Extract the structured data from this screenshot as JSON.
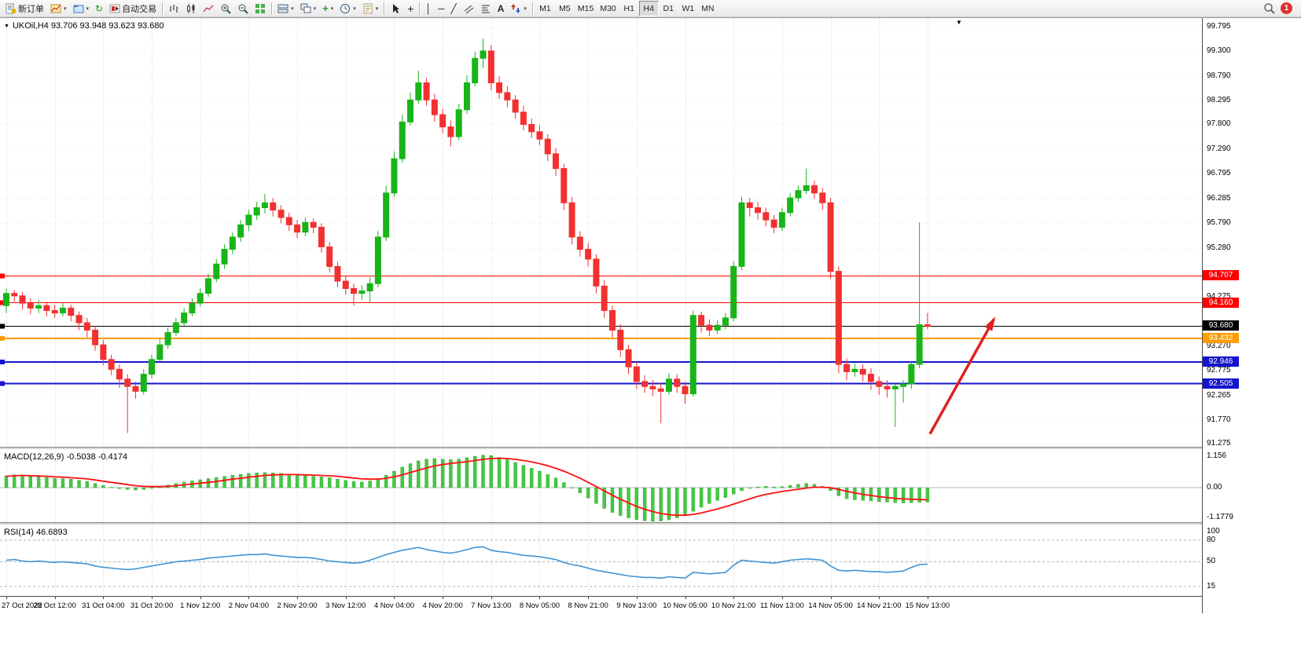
{
  "toolbar": {
    "new_order_label": "新订单",
    "autotrading_label": "自动交易",
    "timeframes": [
      {
        "label": "M1",
        "active": false
      },
      {
        "label": "M5",
        "active": false
      },
      {
        "label": "M15",
        "active": false
      },
      {
        "label": "M30",
        "active": false
      },
      {
        "label": "H1",
        "active": false
      },
      {
        "label": "H4",
        "active": true
      },
      {
        "label": "D1",
        "active": false
      },
      {
        "label": "W1",
        "active": false
      },
      {
        "label": "MN",
        "active": false
      }
    ],
    "notification_badge": "1"
  },
  "icons": {
    "dropdown": "▾",
    "refresh": "↻",
    "indicator_plus": "+",
    "crosshair": "+",
    "vline": "│",
    "hline": "─",
    "trendline": "╱",
    "text_tool": "A",
    "shift_marker": "▼",
    "header_collapse": "▼"
  },
  "chart_data": {
    "type": "candlestick",
    "header": "UKOil,H4 93.706 93.948 93.623 93.680",
    "ylim": [
      91.25,
      99.94
    ],
    "colors": {
      "bull": "#18b418",
      "bear": "#f23030",
      "macd_hist": "#44c944",
      "macd_signal": "#ff0f0f",
      "rsi": "#3e93d4",
      "grid_v": "#d6d6d6",
      "grid_h": "#ededed"
    },
    "price_axis_labels": [
      "99.795",
      "99.300",
      "98.790",
      "98.295",
      "97.800",
      "97.290",
      "96.795",
      "96.285",
      "95.790",
      "95.280",
      "94.275",
      "93.270",
      "92.775",
      "92.265",
      "91.770",
      "91.275"
    ],
    "extra_gridline_prices": [
      94.78,
      93.775
    ],
    "time_axis_labels": [
      "27 Oct 2022",
      "28 Oct 12:00",
      "31 Oct 04:00",
      "31 Oct 20:00",
      "1 Nov 12:00",
      "2 Nov 04:00",
      "2 Nov 20:00",
      "3 Nov 12:00",
      "4 Nov 04:00",
      "4 Nov 20:00",
      "7 Nov 13:00",
      "8 Nov 05:00",
      "8 Nov 21:00",
      "9 Nov 13:00",
      "10 Nov 05:00",
      "10 Nov 21:00",
      "11 Nov 13:00",
      "14 Nov 05:00",
      "14 Nov 21:00",
      "15 Nov 13:00"
    ],
    "hlines": [
      {
        "price": 94.707,
        "label": "94.707",
        "color": "#ff0000",
        "width": 1
      },
      {
        "price": 94.16,
        "label": "94.160",
        "color": "#ff0000",
        "width": 1
      },
      {
        "price": 93.68,
        "label": "93.680",
        "color": "#000000",
        "width": 1
      },
      {
        "price": 93.432,
        "label": "93.432",
        "color": "#ff9c00",
        "width": 2
      },
      {
        "price": 92.946,
        "label": "92.946",
        "color": "#1414cc",
        "width": 2
      },
      {
        "price": 92.505,
        "label": "92.505",
        "color": "#1414cc",
        "width": 2
      }
    ],
    "arrow": {
      "from": {
        "bar": 114.3,
        "price": 91.48
      },
      "to": {
        "bar": 122.2,
        "price": 93.82
      },
      "color": "#e02020"
    },
    "candles": [
      [
        94.1,
        94.45,
        93.95,
        94.35
      ],
      [
        94.35,
        94.42,
        94.18,
        94.3
      ],
      [
        94.3,
        94.38,
        94.02,
        94.15
      ],
      [
        94.15,
        94.25,
        93.92,
        94.05
      ],
      [
        94.05,
        94.22,
        93.95,
        94.1
      ],
      [
        94.1,
        94.18,
        93.88,
        94.0
      ],
      [
        94.0,
        94.12,
        93.85,
        93.95
      ],
      [
        93.95,
        94.15,
        93.88,
        94.05
      ],
      [
        94.05,
        94.12,
        93.78,
        93.9
      ],
      [
        93.9,
        93.98,
        93.6,
        93.75
      ],
      [
        93.75,
        93.85,
        93.45,
        93.6
      ],
      [
        93.6,
        93.68,
        93.18,
        93.3
      ],
      [
        93.3,
        93.4,
        92.88,
        93.0
      ],
      [
        93.0,
        93.1,
        92.68,
        92.8
      ],
      [
        92.8,
        92.9,
        92.42,
        92.6
      ],
      [
        92.6,
        92.7,
        91.5,
        92.45
      ],
      [
        92.45,
        92.55,
        92.2,
        92.35
      ],
      [
        92.35,
        92.8,
        92.28,
        92.7
      ],
      [
        92.7,
        93.1,
        92.62,
        93.0
      ],
      [
        93.0,
        93.42,
        92.95,
        93.3
      ],
      [
        93.3,
        93.65,
        93.22,
        93.55
      ],
      [
        93.55,
        93.85,
        93.48,
        93.75
      ],
      [
        93.75,
        94.05,
        93.68,
        93.95
      ],
      [
        93.95,
        94.25,
        93.88,
        94.15
      ],
      [
        94.15,
        94.45,
        94.08,
        94.35
      ],
      [
        94.35,
        94.75,
        94.28,
        94.65
      ],
      [
        94.65,
        95.05,
        94.58,
        94.95
      ],
      [
        94.95,
        95.35,
        94.85,
        95.25
      ],
      [
        95.25,
        95.6,
        95.15,
        95.5
      ],
      [
        95.5,
        95.85,
        95.4,
        95.75
      ],
      [
        95.75,
        96.05,
        95.62,
        95.95
      ],
      [
        95.95,
        96.22,
        95.85,
        96.1
      ],
      [
        96.1,
        96.38,
        95.98,
        96.2
      ],
      [
        96.2,
        96.3,
        95.92,
        96.05
      ],
      [
        96.05,
        96.15,
        95.78,
        95.9
      ],
      [
        95.9,
        96.0,
        95.62,
        95.75
      ],
      [
        95.75,
        95.85,
        95.48,
        95.6
      ],
      [
        95.6,
        95.9,
        95.52,
        95.8
      ],
      [
        95.8,
        95.88,
        95.58,
        95.7
      ],
      [
        95.7,
        95.78,
        95.18,
        95.3
      ],
      [
        95.3,
        95.4,
        94.78,
        94.9
      ],
      [
        94.9,
        95.0,
        94.48,
        94.6
      ],
      [
        94.6,
        94.7,
        94.32,
        94.45
      ],
      [
        94.45,
        94.55,
        94.1,
        94.35
      ],
      [
        94.35,
        94.52,
        94.22,
        94.4
      ],
      [
        94.4,
        94.68,
        94.15,
        94.55
      ],
      [
        94.55,
        95.62,
        94.48,
        95.5
      ],
      [
        95.5,
        96.55,
        95.42,
        96.4
      ],
      [
        96.4,
        97.25,
        96.32,
        97.1
      ],
      [
        97.1,
        98.0,
        97.02,
        97.85
      ],
      [
        97.85,
        98.45,
        97.78,
        98.3
      ],
      [
        98.3,
        98.9,
        98.22,
        98.65
      ],
      [
        98.65,
        98.75,
        98.18,
        98.3
      ],
      [
        98.3,
        98.42,
        97.85,
        98.0
      ],
      [
        98.0,
        98.12,
        97.62,
        97.75
      ],
      [
        97.75,
        97.88,
        97.35,
        97.55
      ],
      [
        97.55,
        98.22,
        97.48,
        98.1
      ],
      [
        98.1,
        98.8,
        98.02,
        98.65
      ],
      [
        98.65,
        99.28,
        98.58,
        99.15
      ],
      [
        99.15,
        99.55,
        98.95,
        99.3
      ],
      [
        99.3,
        99.42,
        98.5,
        98.65
      ],
      [
        98.65,
        98.78,
        98.32,
        98.45
      ],
      [
        98.45,
        98.58,
        98.15,
        98.3
      ],
      [
        98.3,
        98.4,
        97.92,
        98.05
      ],
      [
        98.05,
        98.18,
        97.68,
        97.8
      ],
      [
        97.8,
        97.92,
        97.52,
        97.65
      ],
      [
        97.65,
        97.78,
        97.38,
        97.5
      ],
      [
        97.5,
        97.6,
        97.05,
        97.2
      ],
      [
        97.2,
        97.32,
        96.75,
        96.9
      ],
      [
        96.9,
        97.0,
        96.05,
        96.2
      ],
      [
        96.2,
        96.32,
        95.35,
        95.5
      ],
      [
        95.5,
        95.62,
        95.1,
        95.25
      ],
      [
        95.25,
        95.38,
        94.9,
        95.05
      ],
      [
        95.05,
        95.15,
        94.35,
        94.5
      ],
      [
        94.5,
        94.62,
        93.85,
        94.0
      ],
      [
        94.0,
        94.1,
        93.45,
        93.6
      ],
      [
        93.6,
        93.72,
        93.05,
        93.2
      ],
      [
        93.2,
        93.3,
        92.7,
        92.85
      ],
      [
        92.85,
        92.95,
        92.4,
        92.55
      ],
      [
        92.55,
        92.68,
        92.32,
        92.45
      ],
      [
        92.45,
        92.58,
        92.25,
        92.4
      ],
      [
        92.4,
        92.52,
        91.7,
        92.35
      ],
      [
        92.35,
        92.72,
        92.28,
        92.6
      ],
      [
        92.6,
        92.7,
        92.32,
        92.45
      ],
      [
        92.45,
        92.55,
        92.1,
        92.3
      ],
      [
        92.3,
        94.0,
        92.25,
        93.9
      ],
      [
        93.9,
        93.98,
        93.55,
        93.7
      ],
      [
        93.7,
        93.82,
        93.48,
        93.6
      ],
      [
        93.6,
        93.8,
        93.52,
        93.7
      ],
      [
        93.7,
        93.95,
        93.62,
        93.85
      ],
      [
        93.85,
        95.0,
        93.78,
        94.9
      ],
      [
        94.9,
        96.32,
        94.82,
        96.2
      ],
      [
        96.2,
        96.3,
        95.92,
        96.1
      ],
      [
        96.1,
        96.22,
        95.85,
        96.0
      ],
      [
        96.0,
        96.1,
        95.72,
        95.85
      ],
      [
        95.85,
        95.95,
        95.58,
        95.7
      ],
      [
        95.7,
        96.1,
        95.62,
        96.0
      ],
      [
        96.0,
        96.4,
        95.92,
        96.3
      ],
      [
        96.3,
        96.55,
        96.22,
        96.45
      ],
      [
        96.45,
        96.9,
        96.38,
        96.55
      ],
      [
        96.55,
        96.65,
        96.28,
        96.4
      ],
      [
        96.4,
        96.5,
        96.05,
        96.2
      ],
      [
        96.2,
        96.3,
        94.65,
        94.8
      ],
      [
        94.8,
        94.9,
        92.72,
        92.9
      ],
      [
        92.9,
        93.02,
        92.58,
        92.75
      ],
      [
        92.75,
        92.92,
        92.65,
        92.8
      ],
      [
        92.8,
        92.9,
        92.55,
        92.7
      ],
      [
        92.7,
        92.82,
        92.38,
        92.55
      ],
      [
        92.55,
        92.65,
        92.28,
        92.45
      ],
      [
        92.45,
        92.58,
        92.22,
        92.4
      ],
      [
        92.4,
        92.5,
        91.62,
        92.45
      ],
      [
        92.45,
        92.58,
        92.12,
        92.5
      ],
      [
        92.5,
        92.95,
        92.4,
        92.9
      ],
      [
        92.9,
        95.8,
        92.82,
        93.71
      ],
      [
        93.71,
        93.95,
        93.62,
        93.68
      ]
    ],
    "macd": {
      "label": "MACD(12,26,9) -0.5038 -0.4174",
      "ylim": [
        -1.2,
        1.32
      ],
      "scale": [
        {
          "label": "1.156",
          "value": 1.156
        },
        {
          "label": "0.00",
          "value": 0
        },
        {
          "label": "-1.1779",
          "value": -1.1779
        }
      ],
      "histogram": [
        0.42,
        0.45,
        0.43,
        0.4,
        0.38,
        0.36,
        0.33,
        0.32,
        0.3,
        0.26,
        0.22,
        0.15,
        0.08,
        0.02,
        -0.03,
        -0.06,
        -0.08,
        -0.06,
        -0.02,
        0.04,
        0.1,
        0.15,
        0.2,
        0.24,
        0.28,
        0.32,
        0.36,
        0.4,
        0.44,
        0.47,
        0.5,
        0.52,
        0.53,
        0.52,
        0.5,
        0.47,
        0.44,
        0.42,
        0.4,
        0.38,
        0.35,
        0.3,
        0.26,
        0.22,
        0.2,
        0.24,
        0.32,
        0.44,
        0.58,
        0.72,
        0.84,
        0.94,
        1.0,
        1.02,
        1.0,
        0.98,
        1.0,
        1.05,
        1.1,
        1.14,
        1.12,
        1.06,
        0.98,
        0.88,
        0.78,
        0.68,
        0.58,
        0.46,
        0.34,
        0.18,
        0.0,
        -0.18,
        -0.36,
        -0.55,
        -0.72,
        -0.86,
        -0.97,
        -1.05,
        -1.11,
        -1.15,
        -1.17,
        -1.16,
        -1.12,
        -1.05,
        -0.96,
        -0.82,
        -0.68,
        -0.55,
        -0.44,
        -0.34,
        -0.22,
        -0.1,
        -0.02,
        0.03,
        0.05,
        0.03,
        0.04,
        0.08,
        0.12,
        0.15,
        0.12,
        0.05,
        -0.1,
        -0.28,
        -0.38,
        -0.42,
        -0.44,
        -0.46,
        -0.48,
        -0.5,
        -0.52,
        -0.53,
        -0.52,
        -0.51,
        -0.5
      ],
      "signal_line": [
        0.4,
        0.42,
        0.43,
        0.42,
        0.41,
        0.4,
        0.38,
        0.37,
        0.35,
        0.33,
        0.31,
        0.27,
        0.23,
        0.19,
        0.15,
        0.11,
        0.07,
        0.05,
        0.04,
        0.04,
        0.05,
        0.07,
        0.1,
        0.13,
        0.16,
        0.19,
        0.22,
        0.26,
        0.3,
        0.33,
        0.37,
        0.4,
        0.43,
        0.45,
        0.46,
        0.46,
        0.46,
        0.45,
        0.44,
        0.43,
        0.42,
        0.4,
        0.37,
        0.34,
        0.31,
        0.3,
        0.3,
        0.33,
        0.38,
        0.45,
        0.53,
        0.61,
        0.69,
        0.76,
        0.81,
        0.85,
        0.88,
        0.91,
        0.95,
        0.99,
        1.02,
        1.03,
        1.02,
        0.99,
        0.95,
        0.9,
        0.84,
        0.77,
        0.68,
        0.58,
        0.46,
        0.33,
        0.19,
        0.04,
        -0.11,
        -0.26,
        -0.4,
        -0.53,
        -0.65,
        -0.75,
        -0.83,
        -0.9,
        -0.94,
        -0.96,
        -0.96,
        -0.93,
        -0.88,
        -0.81,
        -0.74,
        -0.66,
        -0.57,
        -0.48,
        -0.39,
        -0.3,
        -0.23,
        -0.18,
        -0.13,
        -0.09,
        -0.05,
        -0.01,
        0.02,
        0.02,
        0.0,
        -0.06,
        -0.12,
        -0.18,
        -0.23,
        -0.27,
        -0.31,
        -0.34,
        -0.37,
        -0.39,
        -0.4,
        -0.41,
        -0.42
      ]
    },
    "rsi": {
      "label": "RSI(14) 46.6893",
      "ylim": [
        2,
        101
      ],
      "levels": [
        80,
        50,
        15
      ],
      "scale": [
        {
          "label": "100",
          "value": 100
        },
        {
          "label": "80",
          "value": 80
        },
        {
          "label": "50",
          "value": 50
        },
        {
          "label": "15",
          "value": 15
        }
      ],
      "values": [
        52,
        53,
        51,
        50,
        51,
        50,
        49,
        50,
        49,
        48,
        47,
        44,
        42,
        41,
        40,
        39,
        40,
        42,
        44,
        46,
        48,
        50,
        51,
        52,
        53,
        55,
        56,
        57,
        58,
        59,
        60,
        60,
        61,
        59,
        58,
        57,
        56,
        56,
        55,
        53,
        51,
        50,
        49,
        48,
        49,
        52,
        56,
        60,
        63,
        66,
        68,
        70,
        67,
        65,
        63,
        62,
        64,
        67,
        70,
        71,
        66,
        64,
        63,
        61,
        59,
        58,
        57,
        55,
        53,
        49,
        46,
        44,
        41,
        38,
        36,
        34,
        32,
        30,
        29,
        28,
        28,
        27,
        29,
        28,
        27,
        35,
        34,
        33,
        34,
        35,
        45,
        52,
        51,
        50,
        49,
        48,
        50,
        52,
        53,
        54,
        53,
        52,
        44,
        38,
        37,
        38,
        37,
        36,
        36,
        35,
        36,
        37,
        42,
        46,
        46.7
      ]
    }
  }
}
